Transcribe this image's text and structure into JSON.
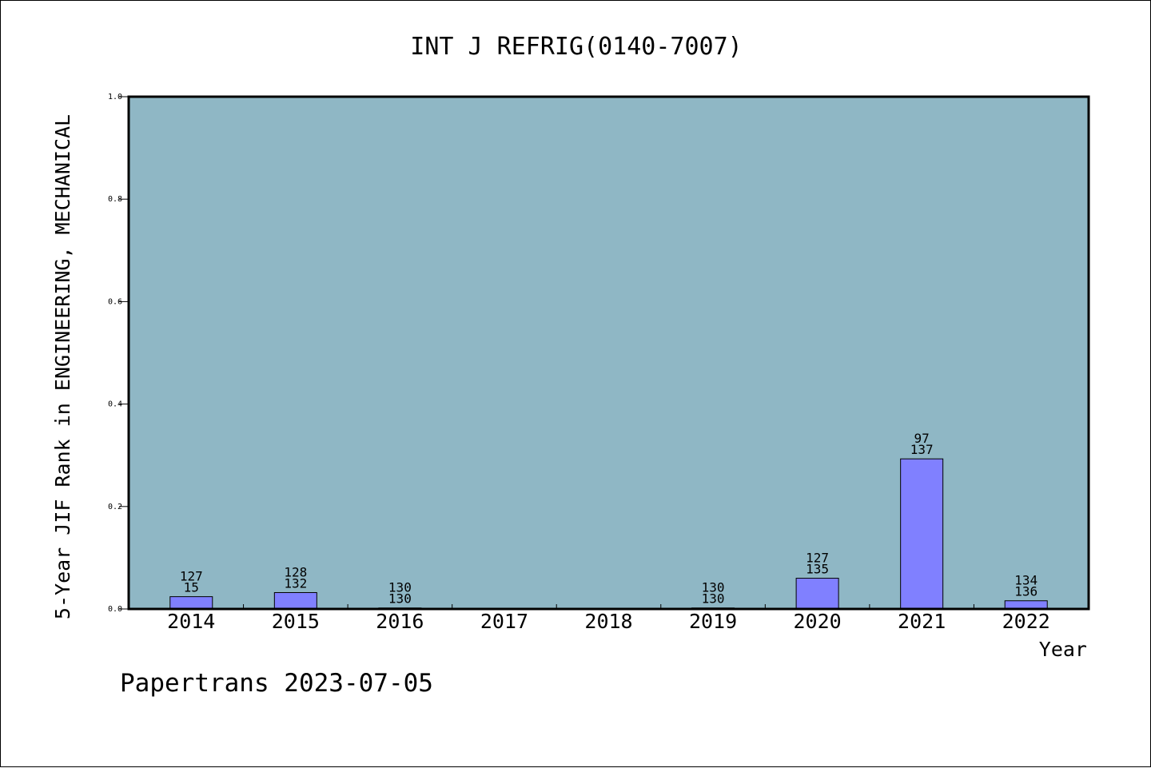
{
  "chart_data": {
    "type": "bar",
    "title": "INT J REFRIG(0140-7007)",
    "xlabel": "Year",
    "ylabel": "5-Year JIF Rank in ENGINEERING, MECHANICAL",
    "ylim": [
      0,
      1.0
    ],
    "yticks": [
      "0.0",
      "0.2",
      "0.4",
      "0.6",
      "0.8",
      "1.0"
    ],
    "categories": [
      "2014",
      "2015",
      "2016",
      "2017",
      "2018",
      "2019",
      "2020",
      "2021",
      "2022"
    ],
    "values": [
      0.024,
      0.032,
      0.002,
      0,
      0,
      0.002,
      0.06,
      0.293,
      0.016
    ],
    "label_top": [
      "127",
      "128",
      "130",
      "",
      "",
      "130",
      "127",
      "97",
      "134"
    ],
    "label_bottom": [
      "15",
      "132",
      "130",
      "",
      "",
      "130",
      "135",
      "137",
      "136"
    ],
    "grid": false,
    "colors": {
      "plot_bg": "#8fb7c5",
      "bar_fill": "#8080ff",
      "bar_stroke": "#000000"
    }
  },
  "footer": {
    "text": "Papertrans 2023-07-05"
  }
}
